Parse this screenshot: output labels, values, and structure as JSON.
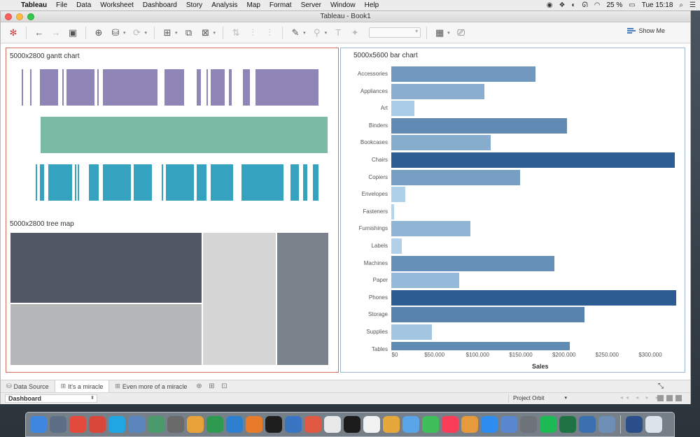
{
  "menubar": {
    "app": "Tableau",
    "items": [
      "File",
      "Data",
      "Worksheet",
      "Dashboard",
      "Story",
      "Analysis",
      "Map",
      "Format",
      "Server",
      "Window",
      "Help"
    ],
    "battery": "25 %",
    "clock": "Tue 15:18"
  },
  "window": {
    "title": "Tableau - Book1"
  },
  "toolbar": {
    "show_me": "Show Me"
  },
  "gantt": {
    "title": "5000x2800 gantt chart",
    "colors": [
      "#8f85b6",
      "#7bbaa5",
      "#35a3bf"
    ]
  },
  "treemap": {
    "title": "5000x2800 tree map"
  },
  "chart_data": {
    "type": "bar",
    "title": "5000x5600 bar chart",
    "xlabel": "Sales",
    "ylabel": "",
    "categories": [
      "Accessories",
      "Appliances",
      "Art",
      "Binders",
      "Bookcases",
      "Chairs",
      "Copiers",
      "Envelopes",
      "Fasteners",
      "Furnishings",
      "Labels",
      "Machines",
      "Paper",
      "Phones",
      "Storage",
      "Supplies",
      "Tables"
    ],
    "values": [
      167000,
      107500,
      27100,
      203400,
      114900,
      328400,
      149500,
      16500,
      3000,
      91700,
      12500,
      189200,
      78500,
      330000,
      223800,
      46700,
      206900
    ],
    "xlim": [
      0,
      330000
    ],
    "ticks": [
      0,
      50000,
      100000,
      150000,
      200000,
      250000,
      300000
    ],
    "tick_labels": [
      "$0",
      "$50.000",
      "$100.000",
      "$150.000",
      "$200.000",
      "$250.000",
      "$300.000"
    ],
    "color_low": "#b6d6ee",
    "color_high": "#2c5c91"
  },
  "tabs": {
    "data_source": "Data Source",
    "sheets": [
      "It's a miracle",
      "Even more of a miracle"
    ]
  },
  "status": {
    "sheet_select": "Dashboard",
    "user": "Project Orbit"
  },
  "dock": {
    "apps": [
      "Finder",
      "Launchpad",
      "Chrome",
      "Scrivener",
      "Skype",
      "Tableau",
      "Atom",
      "Sublime Text",
      "TablePlus",
      "Evernote",
      "Affinity",
      "Terminal",
      "VirtualBox",
      "Screenshot",
      "1Password",
      "Spotify Alt",
      "Calendar",
      "Photos",
      "Messages",
      "FaceTime",
      "Music",
      "Books",
      "App Store",
      "Preview",
      "System Preferences",
      "Spotify",
      "Excel",
      "Tableau Public",
      "Mail",
      "QuickTime",
      "Documents",
      "Trash"
    ]
  }
}
